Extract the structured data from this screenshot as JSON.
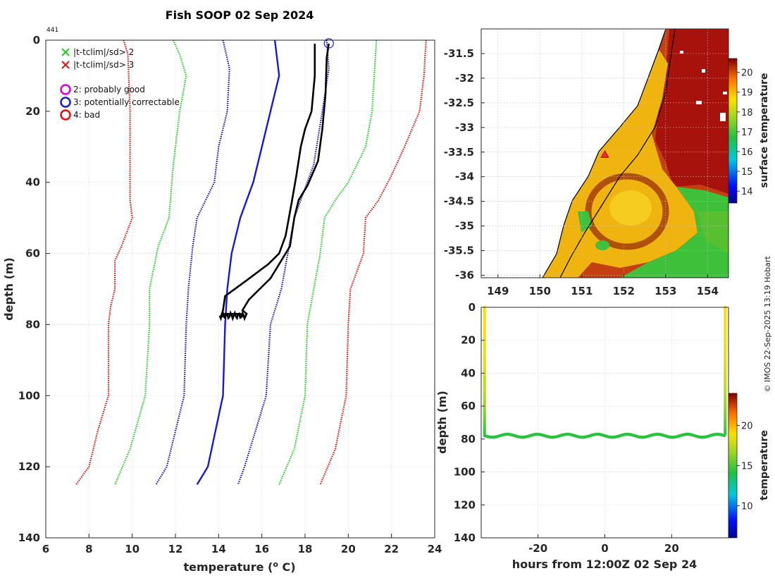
{
  "page": {
    "title": "Fish SOOP 02 Sep 2024",
    "id_label": "441",
    "credit": "© IMOS 22-Sep-2025 13:19 Hobart"
  },
  "colors": {
    "clim2": "#22cc22",
    "clim3": "#dd1111",
    "std1": "#1111bb",
    "mean": "#1a1acc",
    "profile": "#000000",
    "flag_good": "#dd00dd",
    "flag_corr": "#1a1acc",
    "flag_bad": "#dd1111"
  },
  "chart_data": [
    {
      "type": "line",
      "name": "profile",
      "xlabel": "temperature (",
      "xlabel_sup": "o",
      "xlabel_tail": " C)",
      "ylabel": "depth (m)",
      "xlim": [
        6,
        24
      ],
      "ylim": [
        140,
        0
      ],
      "xticks": [
        "6",
        "8",
        "10",
        "12",
        "14",
        "16",
        "18",
        "20",
        "22",
        "24"
      ],
      "yticks": [
        "0",
        "20",
        "40",
        "60",
        "80",
        "100",
        "120",
        "140"
      ],
      "legend": {
        "cross_green": "|t-tclim|/sd> 2",
        "cross_red": "|t-tclim|/sd> 3",
        "circle_magenta": "2: probably good",
        "circle_blue": "3: potentially correctable",
        "circle_red": "4: bad"
      },
      "flag_point": {
        "temp": 19.1,
        "depth": 0.5
      },
      "series": [
        {
          "name": "clim-3sd-low",
          "style": "dotted",
          "color": "clim3",
          "points": [
            [
              9.6,
              0
            ],
            [
              9.8,
              4
            ],
            [
              9.9,
              20
            ],
            [
              9.9,
              45
            ],
            [
              10.0,
              50
            ],
            [
              9.5,
              58
            ],
            [
              9.2,
              62
            ],
            [
              9.2,
              70
            ],
            [
              9.0,
              75
            ],
            [
              8.9,
              80
            ],
            [
              8.9,
              100
            ],
            [
              8.4,
              110
            ],
            [
              8.0,
              120
            ],
            [
              7.4,
              125
            ]
          ]
        },
        {
          "name": "clim-2sd-low",
          "style": "dotted",
          "color": "clim2",
          "points": [
            [
              11.9,
              0
            ],
            [
              12.2,
              4
            ],
            [
              12.5,
              10
            ],
            [
              12.2,
              20
            ],
            [
              11.9,
              35
            ],
            [
              11.7,
              50
            ],
            [
              11.2,
              58
            ],
            [
              10.8,
              70
            ],
            [
              10.8,
              80
            ],
            [
              10.6,
              100
            ],
            [
              9.9,
              115
            ],
            [
              9.2,
              125
            ]
          ]
        },
        {
          "name": "clim-1sd-low",
          "style": "dotted",
          "color": "std1",
          "points": [
            [
              14.2,
              0
            ],
            [
              14.5,
              8
            ],
            [
              14.4,
              20
            ],
            [
              14.0,
              30
            ],
            [
              13.8,
              40
            ],
            [
              13.0,
              50
            ],
            [
              12.8,
              58
            ],
            [
              12.6,
              70
            ],
            [
              12.5,
              80
            ],
            [
              12.4,
              100
            ],
            [
              11.6,
              120
            ],
            [
              11.1,
              125
            ]
          ]
        },
        {
          "name": "clim-mean",
          "style": "solid",
          "color": "mean",
          "points": [
            [
              16.6,
              0
            ],
            [
              16.8,
              10
            ],
            [
              16.4,
              20
            ],
            [
              16.0,
              30
            ],
            [
              15.6,
              40
            ],
            [
              15.0,
              50
            ],
            [
              14.6,
              60
            ],
            [
              14.4,
              70
            ],
            [
              14.3,
              80
            ],
            [
              14.2,
              100
            ],
            [
              13.5,
              120
            ],
            [
              13.0,
              125
            ]
          ]
        },
        {
          "name": "clim-1sd-high",
          "style": "dotted",
          "color": "std1",
          "points": [
            [
              19.0,
              0
            ],
            [
              19.1,
              8
            ],
            [
              18.8,
              20
            ],
            [
              18.4,
              35
            ],
            [
              17.8,
              45
            ],
            [
              17.5,
              50
            ],
            [
              17.2,
              60
            ],
            [
              16.9,
              70
            ],
            [
              16.4,
              80
            ],
            [
              16.2,
              100
            ],
            [
              15.7,
              110
            ],
            [
              15.2,
              120
            ],
            [
              14.9,
              125
            ]
          ]
        },
        {
          "name": "clim-2sd-high",
          "style": "dotted",
          "color": "clim2",
          "points": [
            [
              21.3,
              0
            ],
            [
              21.2,
              10
            ],
            [
              21.1,
              20
            ],
            [
              20.8,
              30
            ],
            [
              20.0,
              40
            ],
            [
              19.4,
              45
            ],
            [
              18.9,
              50
            ],
            [
              18.7,
              60
            ],
            [
              18.4,
              70
            ],
            [
              18.1,
              80
            ],
            [
              18.0,
              100
            ],
            [
              17.5,
              115
            ],
            [
              16.8,
              125
            ]
          ]
        },
        {
          "name": "clim-3sd-high",
          "style": "dotted",
          "color": "clim3",
          "points": [
            [
              23.6,
              0
            ],
            [
              23.5,
              10
            ],
            [
              23.3,
              20
            ],
            [
              22.6,
              30
            ],
            [
              22.0,
              38
            ],
            [
              21.4,
              45
            ],
            [
              20.8,
              50
            ],
            [
              20.7,
              60
            ],
            [
              20.1,
              70
            ],
            [
              20.0,
              80
            ],
            [
              19.9,
              100
            ],
            [
              19.4,
              115
            ],
            [
              18.7,
              125
            ]
          ]
        },
        {
          "name": "profile-down",
          "style": "solid",
          "color": "profile",
          "points": [
            [
              18.45,
              1
            ],
            [
              18.45,
              10
            ],
            [
              18.3,
              20
            ],
            [
              18.0,
              25
            ],
            [
              17.8,
              30
            ],
            [
              17.6,
              38
            ],
            [
              17.4,
              45
            ],
            [
              17.1,
              55
            ],
            [
              16.8,
              60
            ],
            [
              16.3,
              63
            ],
            [
              15.2,
              68
            ],
            [
              14.3,
              72
            ],
            [
              14.2,
              76
            ],
            [
              14.1,
              78
            ]
          ]
        },
        {
          "name": "profile-up",
          "style": "solid",
          "color": "profile",
          "points": [
            [
              14.1,
              78
            ],
            [
              14.3,
              77
            ],
            [
              15.0,
              77
            ],
            [
              15.2,
              78
            ],
            [
              15.3,
              77
            ],
            [
              15.1,
              76
            ],
            [
              15.4,
              73
            ],
            [
              15.9,
              70
            ],
            [
              16.4,
              67
            ],
            [
              16.8,
              63
            ],
            [
              17.3,
              58
            ],
            [
              17.5,
              50
            ],
            [
              17.7,
              45
            ],
            [
              18.1,
              41
            ],
            [
              18.6,
              34
            ],
            [
              18.8,
              25
            ],
            [
              18.95,
              15
            ],
            [
              19.0,
              5
            ],
            [
              19.1,
              1
            ]
          ]
        }
      ]
    },
    {
      "type": "heatmap",
      "name": "map",
      "xlim": [
        148.6,
        154.5
      ],
      "ylim": [
        -36.05,
        -31.0
      ],
      "xticks": [
        "149",
        "150",
        "151",
        "152",
        "153",
        "154"
      ],
      "yticks": [
        "-31.5",
        "-32",
        "-32.5",
        "-33",
        "-33.5",
        "-34",
        "-34.5",
        "-35",
        "-35.5",
        "-36"
      ],
      "colorbar_label": "surface temperature",
      "colorbar_range": [
        13.4,
        20.7
      ],
      "colorbar_ticks": [
        "14",
        "15",
        "16",
        "17",
        "18",
        "19",
        "20"
      ],
      "station": {
        "lon": 151.55,
        "lat": -33.55
      }
    },
    {
      "type": "scatter",
      "name": "time-depth",
      "xlabel": "hours from 12:00Z 02 Sep 24",
      "ylabel": "depth (m)",
      "xlim": [
        -37,
        37
      ],
      "ylim": [
        140,
        0
      ],
      "xticks": [
        "-20",
        "0",
        "20"
      ],
      "yticks": [
        "0",
        "20",
        "40",
        "60",
        "80",
        "100",
        "120",
        "140"
      ],
      "colorbar_label": "temperature",
      "colorbar_range": [
        6,
        24
      ],
      "colorbar_ticks": [
        "10",
        "15",
        "20"
      ],
      "series": [
        {
          "name": "start-cast",
          "hours": -36,
          "depths": [
            0,
            10,
            20,
            30,
            40,
            50,
            60,
            70,
            78
          ],
          "temps": [
            19.0,
            19.0,
            18.8,
            18.5,
            18.0,
            17.4,
            16.6,
            15.4,
            14.3
          ]
        },
        {
          "name": "bottom",
          "hours_range": [
            -36,
            36
          ],
          "depth": 78,
          "temp": 14.3
        },
        {
          "name": "end-cast",
          "hours": 36,
          "depths": [
            0,
            10,
            20,
            30,
            40,
            50,
            60,
            70,
            78
          ],
          "temps": [
            19.0,
            19.0,
            18.8,
            18.5,
            18.0,
            17.4,
            16.6,
            15.4,
            14.3
          ]
        }
      ]
    }
  ]
}
